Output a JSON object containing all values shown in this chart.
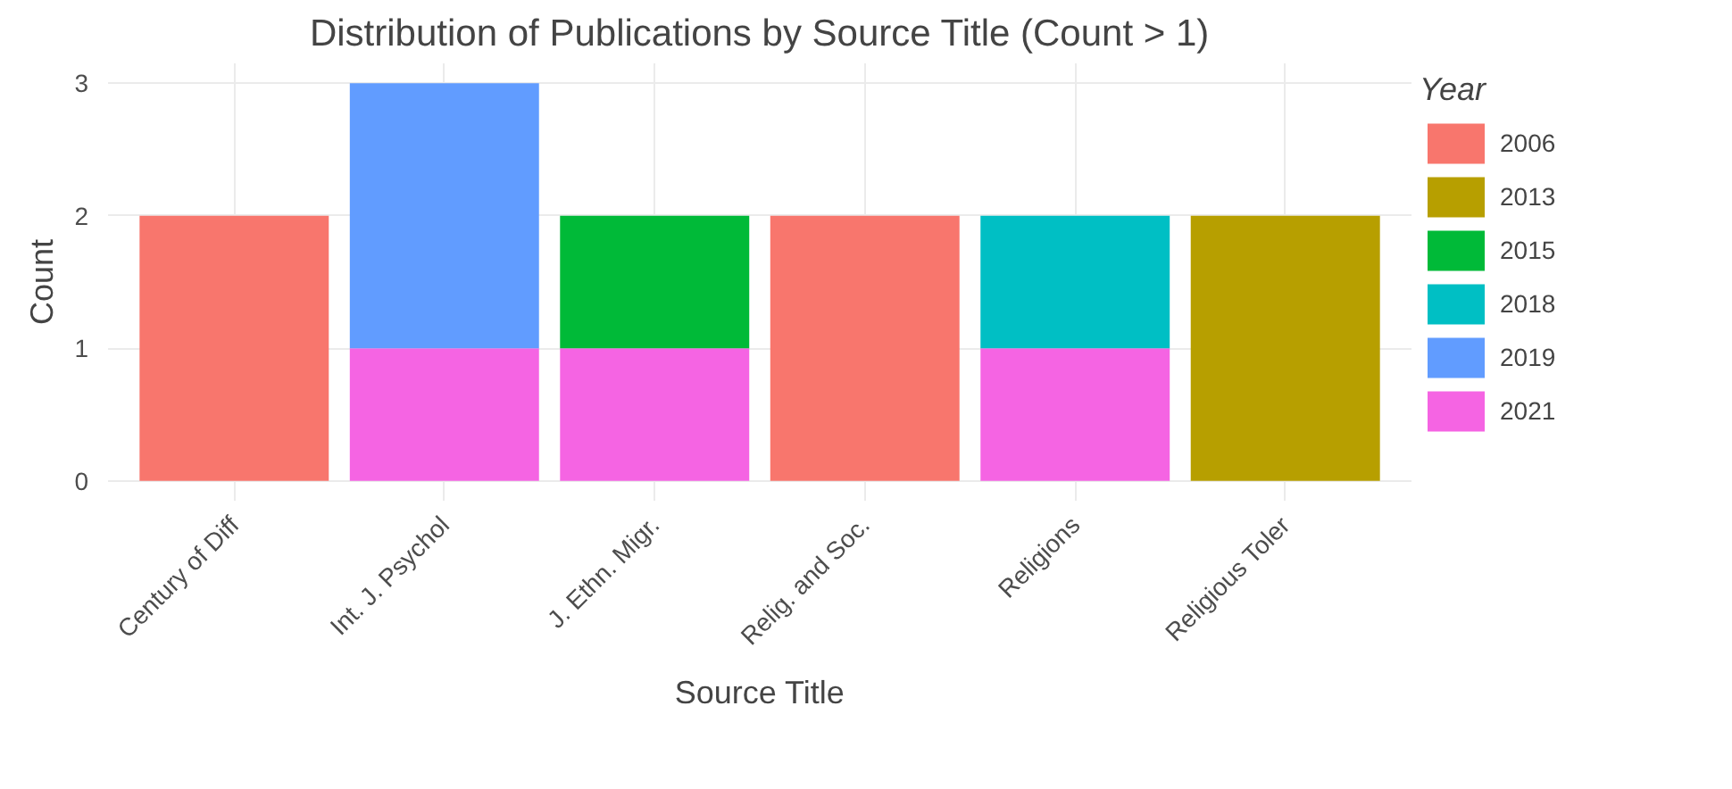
{
  "chart_data": {
    "type": "bar",
    "stacked": true,
    "title": "Distribution of Publications by Source Title (Count > 1)",
    "xlabel": "Source Title",
    "ylabel": "Count",
    "legend_title": "Year",
    "categories": [
      "Century of Diff",
      "Int. J. Psychol",
      "J. Ethn. Migr.",
      "Relig. and Soc.",
      "Religions",
      "Religious Toler"
    ],
    "series": [
      {
        "name": "2021",
        "color": "#f564e3",
        "values": [
          null,
          1,
          1,
          null,
          1,
          null
        ]
      },
      {
        "name": "2019",
        "color": "#619cff",
        "values": [
          null,
          2,
          null,
          null,
          null,
          null
        ]
      },
      {
        "name": "2018",
        "color": "#00bfc4",
        "values": [
          null,
          null,
          null,
          null,
          1,
          null
        ]
      },
      {
        "name": "2015",
        "color": "#00ba38",
        "values": [
          null,
          null,
          1,
          null,
          null,
          null
        ]
      },
      {
        "name": "2013",
        "color": "#b79f00",
        "values": [
          null,
          null,
          null,
          null,
          null,
          2
        ]
      },
      {
        "name": "2006",
        "color": "#f8766d",
        "values": [
          2,
          null,
          null,
          2,
          null,
          null
        ]
      }
    ],
    "ylim": [
      -0.15,
      3.15
    ],
    "yticks": [
      0,
      1,
      2,
      3
    ],
    "grid": true,
    "legend": "right"
  }
}
